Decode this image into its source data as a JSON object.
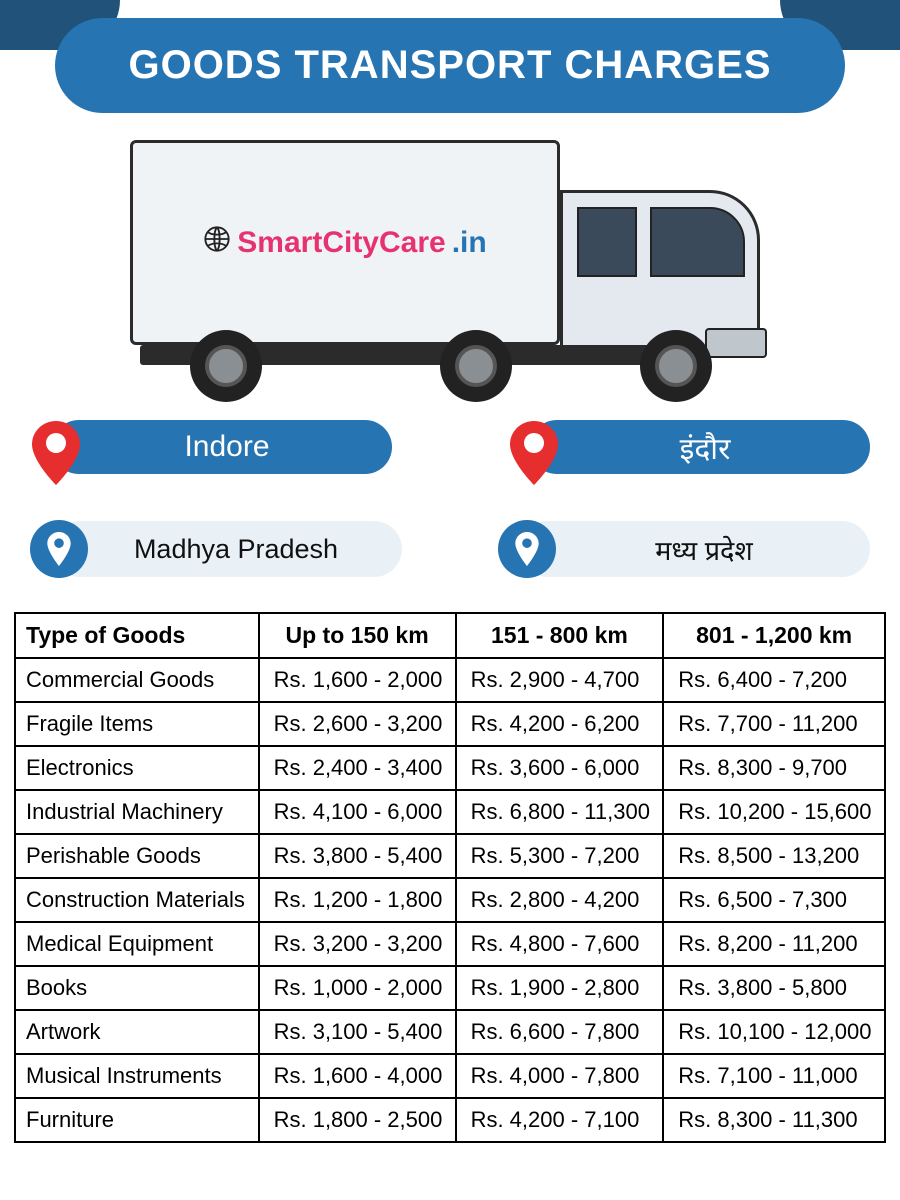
{
  "header": {
    "title": "GOODS TRANSPORT CHARGES"
  },
  "brand": {
    "part1": "SmartCityCare",
    "part2": ".in"
  },
  "locations": {
    "city_en": "Indore",
    "city_hi": "इंदौर",
    "state_en": "Madhya Pradesh",
    "state_hi": "मध्य प्रदेश"
  },
  "colors": {
    "primary": "#2674b2",
    "dark": "#21537a",
    "brand_pink": "#e6326e",
    "pin_red": "#e62e2e",
    "light_pill": "#e9f1f7"
  },
  "table": {
    "headers": [
      "Type of Goods",
      "Up to 150 km",
      "151 - 800 km",
      "801 - 1,200 km"
    ],
    "rows": [
      [
        "Commercial Goods",
        "Rs. 1,600 - 2,000",
        "Rs. 2,900 - 4,700",
        "Rs. 6,400 - 7,200"
      ],
      [
        "Fragile Items",
        "Rs. 2,600 - 3,200",
        "Rs. 4,200 - 6,200",
        "Rs. 7,700 - 11,200"
      ],
      [
        "Electronics",
        "Rs. 2,400 - 3,400",
        "Rs. 3,600 - 6,000",
        "Rs. 8,300 - 9,700"
      ],
      [
        "Industrial Machinery",
        "Rs. 4,100 - 6,000",
        "Rs. 6,800 - 11,300",
        "Rs. 10,200 - 15,600"
      ],
      [
        "Perishable Goods",
        "Rs. 3,800 - 5,400",
        "Rs. 5,300 - 7,200",
        "Rs. 8,500 - 13,200"
      ],
      [
        "Construction Materials",
        "Rs. 1,200 - 1,800",
        "Rs. 2,800 - 4,200",
        "Rs. 6,500 - 7,300"
      ],
      [
        "Medical Equipment",
        "Rs. 3,200 - 3,200",
        "Rs. 4,800 - 7,600",
        "Rs. 8,200 - 11,200"
      ],
      [
        "Books",
        "Rs. 1,000 - 2,000",
        "Rs. 1,900 - 2,800",
        "Rs. 3,800 - 5,800"
      ],
      [
        "Artwork",
        "Rs. 3,100 - 5,400",
        "Rs. 6,600 - 7,800",
        "Rs. 10,100 - 12,000"
      ],
      [
        "Musical Instruments",
        "Rs. 1,600 - 4,000",
        "Rs. 4,000 - 7,800",
        "Rs. 7,100 - 11,000"
      ],
      [
        "Furniture",
        "Rs. 1,800 - 2,500",
        "Rs. 4,200 - 7,100",
        "Rs. 8,300 - 11,300"
      ]
    ]
  }
}
